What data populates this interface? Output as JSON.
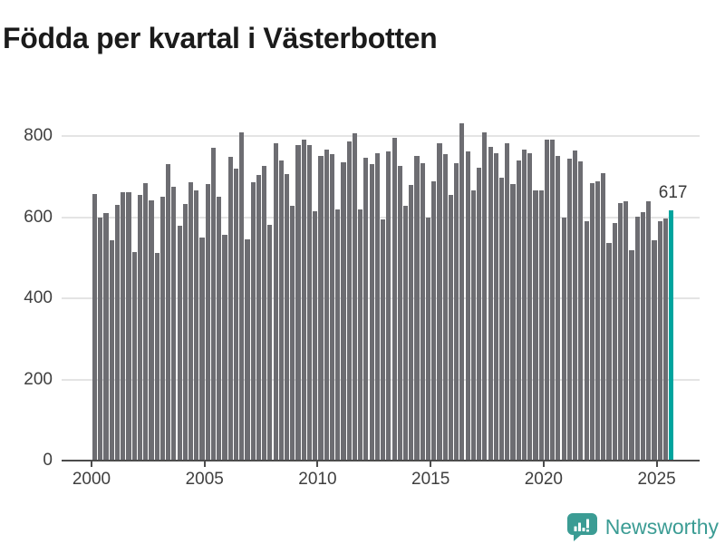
{
  "title": "Födda per kvartal i Västerbotten",
  "annotation": {
    "label": "617"
  },
  "brand": {
    "name": "Newsworthy"
  },
  "colors": {
    "bar": "#6d6d72",
    "highlight": "#00a49e",
    "grid": "#e4e4e4",
    "axis": "#4c4c4c",
    "tick_text": "#3f3f3f",
    "title_text": "#1b1b1b",
    "brand_teal": "#3b9c94"
  },
  "chart_data": {
    "type": "bar",
    "title": "Födda per kvartal i Västerbotten",
    "x_start": "2000-Q1",
    "x_end": "2025-Q3",
    "frequency": "quarterly",
    "x_tick_labels": [
      "2000",
      "2005",
      "2010",
      "2015",
      "2020",
      "2025"
    ],
    "y_ticks": [
      0,
      200,
      400,
      600,
      800
    ],
    "ylim": [
      0,
      845
    ],
    "grid": "horizontal",
    "legend": "none",
    "highlight": {
      "index": 102,
      "label": "617"
    },
    "values": [
      657,
      598,
      610,
      542,
      630,
      661,
      661,
      514,
      654,
      683,
      641,
      511,
      651,
      730,
      675,
      579,
      632,
      685,
      665,
      550,
      681,
      771,
      650,
      556,
      748,
      719,
      810,
      545,
      687,
      705,
      727,
      580,
      783,
      740,
      706,
      627,
      777,
      790,
      777,
      615,
      750,
      767,
      755,
      619,
      735,
      786,
      806,
      620,
      746,
      730,
      757,
      595,
      761,
      796,
      726,
      628,
      679,
      751,
      733,
      598,
      689,
      782,
      756,
      654,
      732,
      832,
      761,
      665,
      721,
      808,
      774,
      757,
      697,
      782,
      681,
      740,
      767,
      757,
      667,
      665,
      790,
      790,
      750,
      600,
      744,
      765,
      737,
      591,
      684,
      689,
      709,
      537,
      585,
      635,
      640,
      518,
      602,
      613,
      639,
      543,
      590,
      596,
      617
    ]
  }
}
